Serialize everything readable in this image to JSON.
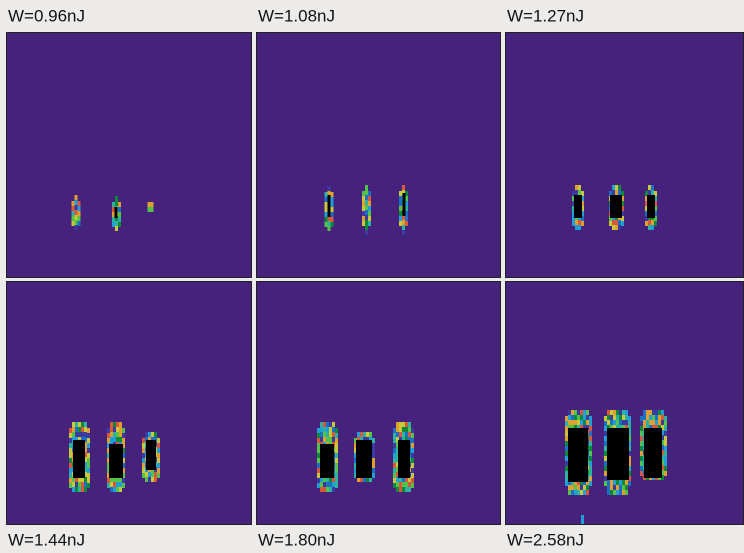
{
  "panels": [
    {
      "label": "W=0.96nJ"
    },
    {
      "label": "W=1.08nJ"
    },
    {
      "label": "W=1.27nJ"
    },
    {
      "label": "W=1.44nJ"
    },
    {
      "label": "W=1.80nJ"
    },
    {
      "label": "W=2.58nJ"
    }
  ]
}
